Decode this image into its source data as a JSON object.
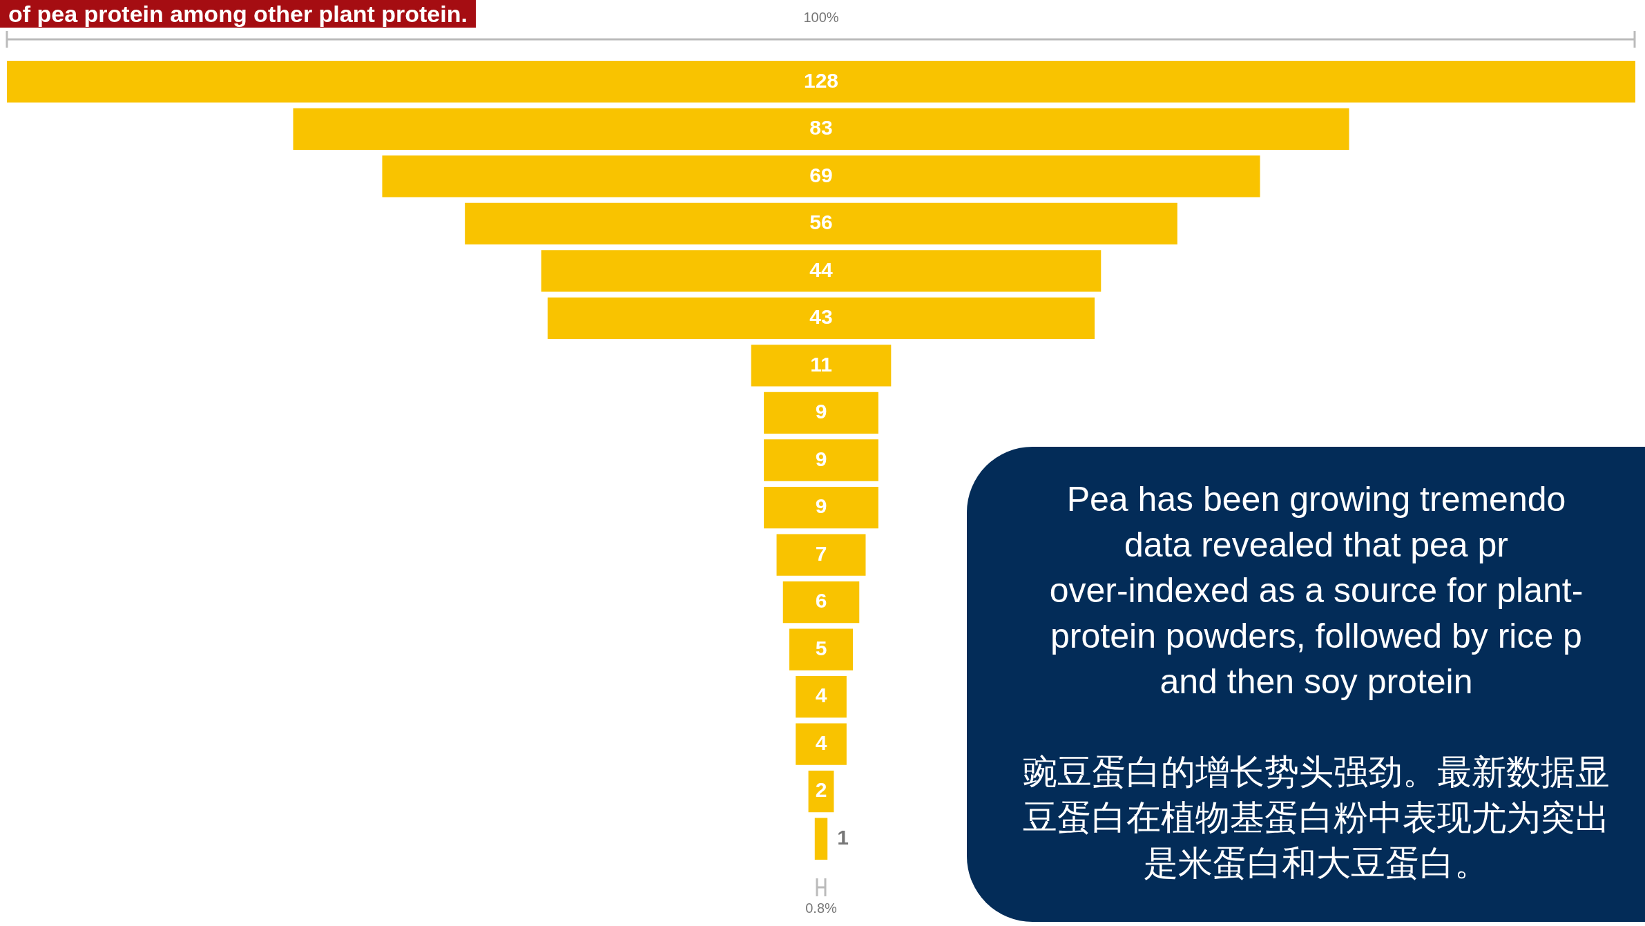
{
  "chart_data": {
    "type": "other",
    "title": "of pea protein among other plant protein.",
    "categories": [
      null,
      null,
      null,
      null,
      null,
      null,
      null,
      null,
      null,
      null,
      null,
      null,
      null,
      null,
      null,
      null,
      null
    ],
    "values": [
      128,
      83,
      69,
      56,
      44,
      43,
      11,
      9,
      9,
      9,
      7,
      6,
      5,
      4,
      4,
      2,
      1
    ],
    "color": "#f9c300",
    "data_labels": true,
    "annotations": [
      "100%",
      "0.8%",
      "Pea has been growing tremendo\ndata revealed that pea pr\nover-indexed as a source for plant-\nprotein powders, followed by rice p\nand then soy protein",
      "豌豆蛋白的增长势头强劲。最新数据显",
      "豆蛋白在植物基蛋白粉中表现尤为突出",
      "是米蛋白和大豆蛋白。"
    ]
  }
}
